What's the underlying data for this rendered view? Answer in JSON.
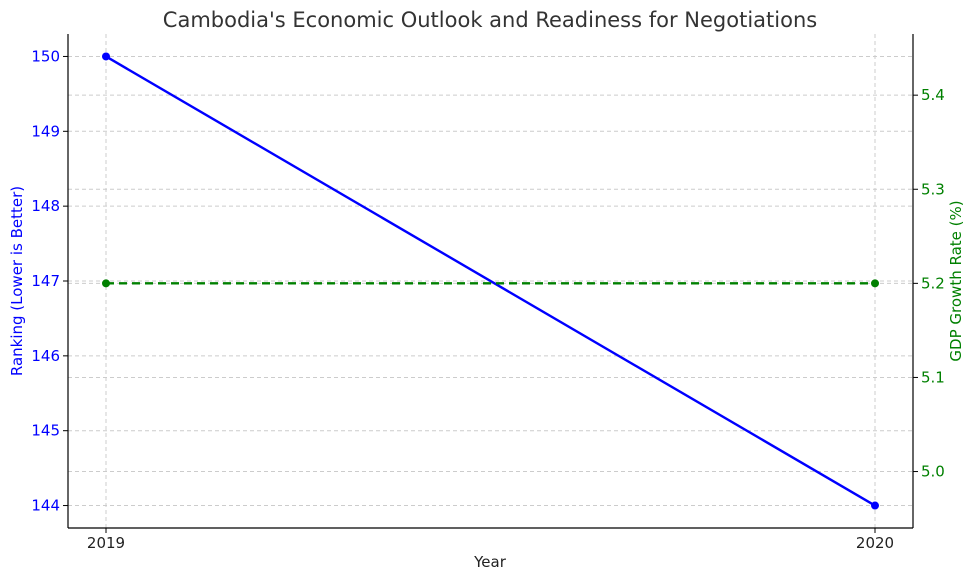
{
  "chart_data": {
    "type": "line",
    "title": "Cambodia's Economic Outlook and Readiness for Negotiations",
    "xlabel": "Year",
    "x": [
      "2019",
      "2020"
    ],
    "y_left": {
      "label": "Ranking (Lower is Better)",
      "color": "#0000ff",
      "lim": [
        143.7,
        150.3
      ],
      "ticks": [
        144,
        145,
        146,
        147,
        148,
        149,
        150
      ]
    },
    "y_right": {
      "label": "GDP Growth Rate (%)",
      "color": "#008000",
      "lim": [
        4.94,
        5.465
      ],
      "ticks": [
        5.0,
        5.1,
        5.2,
        5.3,
        5.4
      ]
    },
    "series": [
      {
        "axis": "left",
        "color": "#0000ff",
        "style": "solid",
        "values": [
          150,
          144
        ]
      },
      {
        "axis": "right",
        "color": "#008000",
        "style": "dashed",
        "values": [
          5.2,
          5.2
        ]
      }
    ],
    "grid": true
  }
}
